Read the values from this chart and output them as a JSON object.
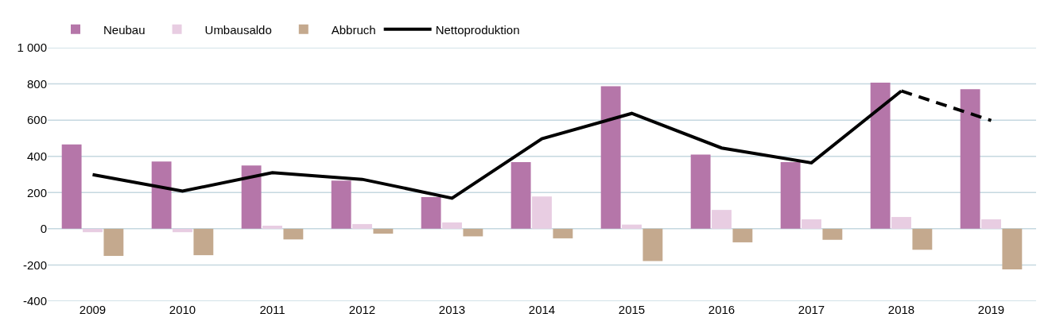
{
  "chart_data": {
    "type": "bar",
    "categories": [
      "2009",
      "2010",
      "2011",
      "2012",
      "2013",
      "2014",
      "2015",
      "2016",
      "2017",
      "2018",
      "2019"
    ],
    "series": [
      {
        "name": "Neubau",
        "color": "#b576a9",
        "values": [
          466,
          371,
          349,
          266,
          175,
          368,
          787,
          410,
          368,
          807,
          771
        ]
      },
      {
        "name": "Umbausaldo",
        "color": "#e8cde2",
        "values": [
          -19,
          -19,
          17,
          26,
          35,
          178,
          23,
          104,
          52,
          65,
          52
        ]
      },
      {
        "name": "Abbruch",
        "color": "#c4a98e",
        "values": [
          -150,
          -146,
          -59,
          -27,
          -42,
          -53,
          -178,
          -75,
          -61,
          -116,
          -224
        ]
      },
      {
        "name": "Nettoproduktion",
        "type": "line",
        "color": "#000000",
        "line_style": "solid",
        "values": [
          299,
          208,
          310,
          273,
          169,
          497,
          637,
          446,
          364,
          761,
          null
        ]
      },
      {
        "type": "line",
        "color": "#000000",
        "line_style": "dashed",
        "values": [
          null,
          null,
          null,
          null,
          null,
          null,
          null,
          null,
          null,
          761,
          598
        ]
      }
    ],
    "ylim": [
      -400,
      1000
    ],
    "yticks": [
      -400,
      -200,
      0,
      200,
      400,
      600,
      800,
      {
        "value": 1000,
        "label": "1 000"
      }
    ],
    "grid": "y",
    "legend": "top left"
  }
}
